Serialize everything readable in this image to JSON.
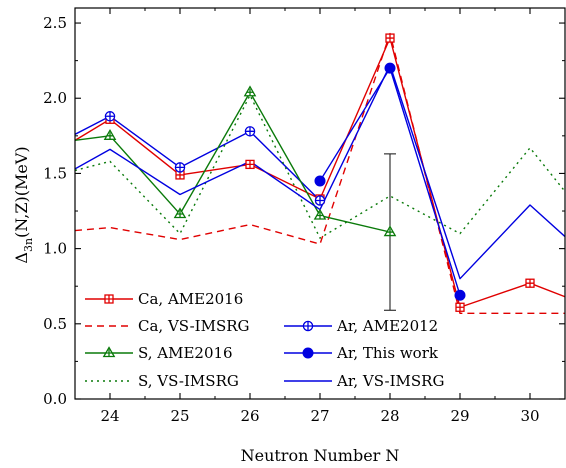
{
  "chart_data": {
    "type": "line",
    "xlabel": "Neutron Number N",
    "ylabel_main": "Δ",
    "ylabel_sub": "3n",
    "ylabel_rest": "(N,Z)(MeV)",
    "xlim": [
      23.5,
      30.5
    ],
    "ylim": [
      0.0,
      2.6
    ],
    "xticks": [
      "24",
      "25",
      "26",
      "27",
      "28",
      "29",
      "30"
    ],
    "yticks": [
      "0.0",
      "0.5",
      "1.0",
      "1.5",
      "2.0",
      "2.5"
    ],
    "series": [
      {
        "name": "Ca, AME2016",
        "color": "#e00000",
        "line": "solid",
        "marker": "square-plus",
        "x": [
          23.5,
          24,
          25,
          26,
          27,
          28,
          29,
          30,
          30.5
        ],
        "y": [
          1.72,
          1.86,
          1.49,
          1.56,
          1.33,
          2.4,
          0.61,
          0.77,
          0.68
        ],
        "marker_x": [
          24,
          25,
          26,
          27,
          28,
          29,
          30
        ]
      },
      {
        "name": "Ca, VS-IMSRG",
        "color": "#e00000",
        "line": "dashed",
        "marker": "none",
        "x": [
          23.5,
          24,
          25,
          26,
          27,
          28,
          29,
          30,
          30.5
        ],
        "y": [
          1.12,
          1.14,
          1.06,
          1.16,
          1.03,
          2.43,
          0.57,
          0.57,
          0.57
        ]
      },
      {
        "name": "Ar, AME2012",
        "color": "#0000e0",
        "line": "solid",
        "marker": "circle-plus",
        "x": [
          23.5,
          24,
          25,
          26,
          27
        ],
        "y": [
          1.76,
          1.88,
          1.54,
          1.78,
          1.32
        ],
        "marker_x": [
          24,
          25,
          26,
          27
        ]
      },
      {
        "name": "S, AME2016",
        "color": "#0a7a0a",
        "line": "solid",
        "marker": "triangle-plus",
        "x": [
          23.5,
          24,
          25,
          26,
          27,
          28
        ],
        "y": [
          1.72,
          1.75,
          1.23,
          2.04,
          1.22,
          1.11
        ],
        "marker_x": [
          24,
          25,
          26,
          27,
          28
        ]
      },
      {
        "name": "Ar, This work",
        "color": "#0000e0",
        "line": "solid",
        "marker": "filled-circle",
        "x": [
          27,
          28,
          29
        ],
        "y": [
          1.45,
          2.2,
          0.69
        ],
        "marker_x": [
          27,
          28,
          29
        ],
        "error_bar": {
          "x": 28,
          "y": 2.2,
          "low": 0.59,
          "high": 1.63
        }
      },
      {
        "name": "S, VS-IMSRG",
        "color": "#0a7a0a",
        "line": "dotted",
        "marker": "none",
        "x": [
          23.5,
          24,
          25,
          26,
          27,
          28,
          29,
          30,
          30.5
        ],
        "y": [
          1.52,
          1.58,
          1.1,
          2.02,
          1.07,
          1.35,
          1.1,
          1.67,
          1.38
        ]
      },
      {
        "name": "Ar, VS-IMSRG",
        "color": "#0000e0",
        "line": "solid",
        "marker": "none",
        "x": [
          23.5,
          24,
          25,
          26,
          27,
          28,
          29,
          30,
          30.5
        ],
        "y": [
          1.53,
          1.66,
          1.36,
          1.58,
          1.26,
          2.22,
          0.8,
          1.29,
          1.08
        ]
      }
    ],
    "legend": [
      {
        "label": "Ca, AME2016",
        "series": 0,
        "column": 0,
        "row": 0
      },
      {
        "label": "Ca, VS-IMSRG",
        "series": 1,
        "column": 0,
        "row": 1
      },
      {
        "label": "Ar, AME2012",
        "series": 2,
        "column": 1,
        "row": 1
      },
      {
        "label": "S, AME2016",
        "series": 3,
        "column": 0,
        "row": 2
      },
      {
        "label": "Ar, This work",
        "series": 4,
        "column": 1,
        "row": 2
      },
      {
        "label": "S, VS-IMSRG",
        "series": 5,
        "column": 0,
        "row": 3
      },
      {
        "label": "Ar, VS-IMSRG",
        "series": 6,
        "column": 1,
        "row": 3
      }
    ],
    "legend_placement": "bottom-left",
    "grid": false
  }
}
